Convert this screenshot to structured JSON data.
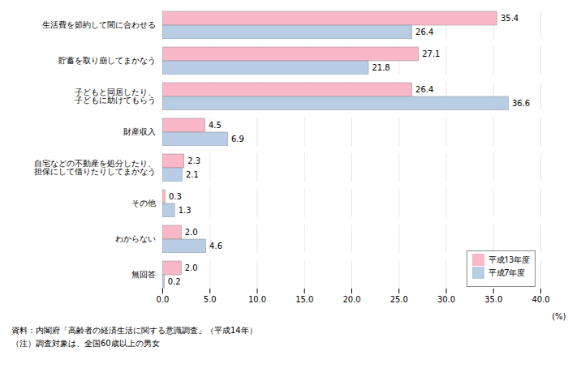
{
  "chart_data": {
    "type": "bar",
    "orientation": "horizontal",
    "categories": [
      "生活費を節約して間に合わせる",
      "貯蓄を取り崩してまかなう",
      "子どもと同居したり、\n子どもに助けてもらう",
      "財産収入",
      "自宅などの不動産を処分したり、\n担保にして借りたりしてまかなう",
      "その他",
      "わからない",
      "無回答"
    ],
    "series": [
      {
        "name": "平成13年度",
        "color": "#f9b8c8",
        "values": [
          35.4,
          27.1,
          26.4,
          4.5,
          2.3,
          0.3,
          2.0,
          2.0
        ],
        "value_labels": [
          "35.4",
          "27.1",
          "26.4",
          "4.5",
          "2.3",
          "0.3",
          "2.0",
          "2.0"
        ]
      },
      {
        "name": "平成7年度",
        "color": "#b8cce4",
        "values": [
          26.4,
          21.8,
          36.6,
          6.9,
          2.1,
          1.3,
          4.6,
          0.2
        ],
        "value_labels": [
          "26.4",
          "21.8",
          "36.6",
          "6.9",
          "2.1",
          "1.3",
          "4.6",
          "0.2"
        ]
      }
    ],
    "xlabel": "(%)",
    "xlim": [
      0,
      40.0
    ],
    "xticks": [
      {
        "value": 0,
        "label": "0.0"
      },
      {
        "value": 5,
        "label": "5.0"
      },
      {
        "value": 10,
        "label": "10.0"
      },
      {
        "value": 15,
        "label": "15.0"
      },
      {
        "value": 20,
        "label": "20.0"
      },
      {
        "value": 25,
        "label": "25.0"
      },
      {
        "value": 30,
        "label": "30.0"
      },
      {
        "value": 35,
        "label": "35.0"
      },
      {
        "value": 40,
        "label": "40.0"
      }
    ],
    "grid": true,
    "legend": "lower right",
    "data_labels": true,
    "annotations": [
      "資料：内閣府「高齢者の経済生活に関する意識調査」（平成14年）",
      "（注）調査対象は、全国60歳以上の男女"
    ]
  }
}
